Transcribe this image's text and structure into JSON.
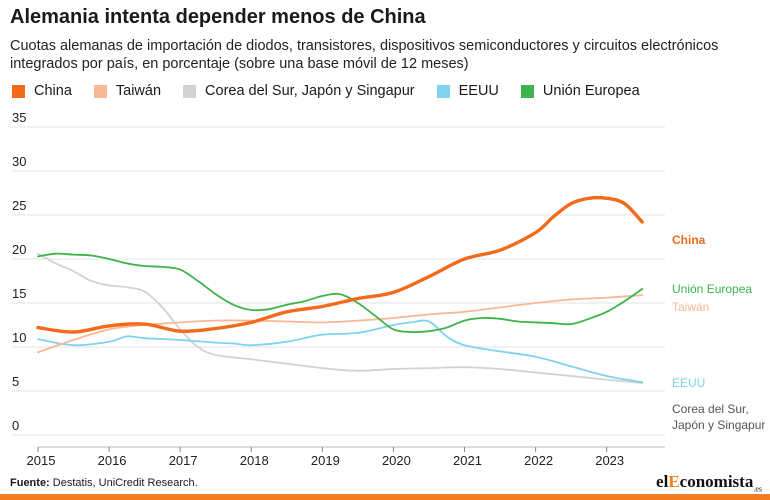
{
  "header": {
    "title": "Alemania intenta depender menos de China",
    "subtitle": "Cuotas alemanas de importación de diodos, transistores, dispositivos semiconductores y circuitos electrónicos integrados por país, en porcentaje (sobre una base móvil de 12 meses)"
  },
  "footer": {
    "source_label": "Fuente:",
    "source_text": " Destatis, UniCredit Research.",
    "brand_pre": "el",
    "brand_accent": "E",
    "brand_post": "conomista",
    "brand_suffix": ".es"
  },
  "chart_data": {
    "type": "line",
    "title": "Alemania intenta depender menos de China",
    "xlabel": "",
    "ylabel": "",
    "xlim": [
      2015,
      2023.75
    ],
    "ylim": [
      0,
      35
    ],
    "yticks": [
      0,
      5,
      10,
      15,
      20,
      25,
      30,
      35
    ],
    "xticks": [
      "2015",
      "2016",
      "2017",
      "2018",
      "2019",
      "2020",
      "2021",
      "2022",
      "2023"
    ],
    "grid": "horizontal",
    "legend": "top",
    "series": [
      {
        "name": "China",
        "end_label": "China",
        "color": "#f26a1b",
        "x": [
          2015,
          2015.5,
          2016,
          2016.5,
          2017,
          2017.5,
          2018,
          2018.5,
          2019,
          2019.5,
          2020,
          2020.5,
          2021,
          2021.5,
          2022,
          2022.25,
          2022.5,
          2022.75,
          2023,
          2023.25,
          2023.5
        ],
        "values": [
          12.2,
          11.7,
          12.4,
          12.6,
          11.8,
          12.1,
          12.8,
          14.0,
          14.6,
          15.5,
          16.2,
          18.0,
          20.0,
          21.0,
          23.0,
          24.8,
          26.3,
          26.9,
          26.9,
          26.3,
          24.2
        ]
      },
      {
        "name": "Taiwán",
        "end_label": "Taiwán",
        "color": "#f9b894",
        "x": [
          2015,
          2015.5,
          2016,
          2016.5,
          2017,
          2017.5,
          2018,
          2018.5,
          2019,
          2019.5,
          2020,
          2020.5,
          2021,
          2021.5,
          2022,
          2022.5,
          2023,
          2023.5
        ],
        "values": [
          9.4,
          10.8,
          12.0,
          12.5,
          12.8,
          13.0,
          13.0,
          12.9,
          12.8,
          13.0,
          13.3,
          13.7,
          14.0,
          14.5,
          15.0,
          15.4,
          15.6,
          15.9
        ]
      },
      {
        "name": "Corea del Sur, Japón y Singapur",
        "end_label": "Corea del Sur,\nJapón y Singapur",
        "color": "#d2d2d2",
        "x": [
          2015,
          2015.25,
          2015.5,
          2015.75,
          2016,
          2016.25,
          2016.5,
          2016.75,
          2017,
          2017.25,
          2017.5,
          2018,
          2018.5,
          2019,
          2019.5,
          2020,
          2020.5,
          2021,
          2021.5,
          2022,
          2022.5,
          2023,
          2023.5
        ],
        "values": [
          20.6,
          19.5,
          18.6,
          17.5,
          17.0,
          16.8,
          16.3,
          14.5,
          12.0,
          10.0,
          9.1,
          8.6,
          8.1,
          7.6,
          7.3,
          7.5,
          7.6,
          7.7,
          7.5,
          7.1,
          6.7,
          6.3,
          5.9
        ]
      },
      {
        "name": "EEUU",
        "end_label": "EEUU",
        "color": "#7fd3ee",
        "x": [
          2015,
          2015.5,
          2016,
          2016.25,
          2016.5,
          2017,
          2017.5,
          2017.75,
          2018,
          2018.5,
          2019,
          2019.5,
          2020,
          2020.25,
          2020.5,
          2020.75,
          2021,
          2021.5,
          2022,
          2022.5,
          2023,
          2023.5
        ],
        "values": [
          10.9,
          10.2,
          10.6,
          11.2,
          11.0,
          10.8,
          10.5,
          10.4,
          10.2,
          10.6,
          11.4,
          11.6,
          12.5,
          12.8,
          12.9,
          11.2,
          10.2,
          9.5,
          8.9,
          7.8,
          6.7,
          6.0
        ]
      },
      {
        "name": "Unión Europea",
        "end_label": "Unión Europea",
        "color": "#3db34a",
        "x": [
          2015,
          2015.25,
          2015.5,
          2015.75,
          2016,
          2016.25,
          2016.5,
          2016.75,
          2017,
          2017.25,
          2017.5,
          2017.75,
          2018,
          2018.25,
          2018.5,
          2018.75,
          2019,
          2019.25,
          2019.5,
          2019.75,
          2020,
          2020.25,
          2020.5,
          2020.75,
          2021,
          2021.25,
          2021.5,
          2021.75,
          2022,
          2022.25,
          2022.5,
          2022.75,
          2023,
          2023.25,
          2023.5
        ],
        "values": [
          20.3,
          20.6,
          20.5,
          20.4,
          20.0,
          19.5,
          19.2,
          19.1,
          18.8,
          17.5,
          16.0,
          14.8,
          14.2,
          14.3,
          14.8,
          15.2,
          15.8,
          16.0,
          15.0,
          13.5,
          12.0,
          11.7,
          11.8,
          12.2,
          13.0,
          13.3,
          13.2,
          12.9,
          12.8,
          12.7,
          12.6,
          13.2,
          14.0,
          15.2,
          16.6
        ]
      }
    ]
  }
}
